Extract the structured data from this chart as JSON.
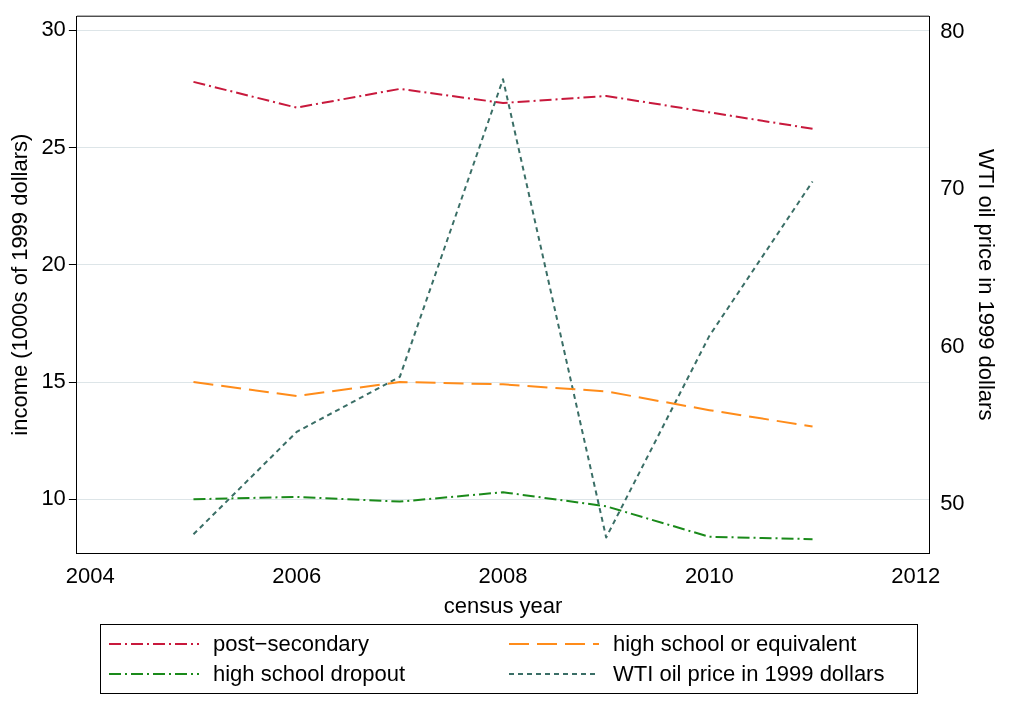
{
  "chart_data": {
    "type": "line",
    "xlabel": "census year",
    "ylabel": "income (1000s of 1999 dollars)",
    "y2label": "WTI oil price in 1999 dollars",
    "x": [
      2005,
      2006,
      2007,
      2008,
      2009,
      2010,
      2011
    ],
    "series": [
      {
        "name": "post−secondary",
        "color": "#c8193c",
        "line_style": "dashdot",
        "values": [
          27.8,
          26.7,
          27.5,
          26.9,
          27.2,
          26.5,
          25.8
        ]
      },
      {
        "name": "high school or equivalent",
        "color": "#ff8c1a",
        "line_style": "dashed",
        "values": [
          15.0,
          14.4,
          15.0,
          14.9,
          14.6,
          13.8,
          13.1
        ]
      },
      {
        "name": "high school dropout",
        "color": "#1a8a1a",
        "line_style": "dashdot",
        "values": [
          10.0,
          10.1,
          9.9,
          10.3,
          9.7,
          8.4,
          8.3
        ]
      },
      {
        "name": "WTI oil price in 1999 dollars",
        "color": "#3a6e66",
        "line_style": "dotted",
        "axis": "y2",
        "values": [
          48.1,
          54.6,
          58.1,
          77.0,
          47.9,
          60.7,
          70.5
        ]
      }
    ],
    "xlim": [
      2003.87,
      2012.13
    ],
    "xticks": [
      2004,
      2006,
      2008,
      2010,
      2012
    ],
    "ylim": [
      7.7,
      30.6
    ],
    "yticks": [
      10,
      15,
      20,
      25,
      30
    ],
    "y2lim": [
      46.9,
      81
    ],
    "y2ticks": [
      50,
      60,
      70,
      80
    ],
    "grid": "y",
    "legend": "bottom",
    "marker": "none"
  }
}
